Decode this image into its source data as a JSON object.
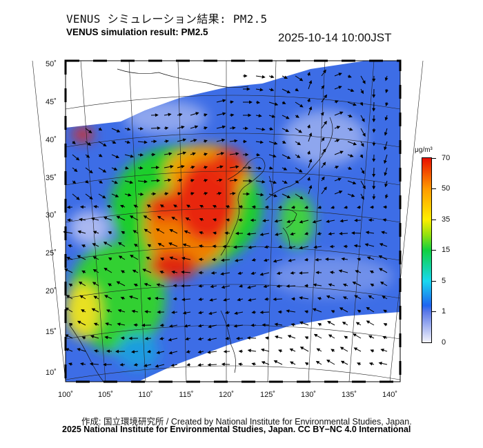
{
  "header": {
    "title_jp": "VENUS シミュレーション結果: PM2.5",
    "title_en": "VENUS simulation result: PM2.5",
    "timestamp": "2025-10-14 10:00JST"
  },
  "map": {
    "lat_labels": [
      "50˚",
      "45˚",
      "40˚",
      "35˚",
      "30˚",
      "25˚",
      "20˚",
      "15˚",
      "10˚"
    ],
    "lon_labels": [
      "100˚",
      "105˚",
      "110˚",
      "115˚",
      "120˚",
      "125˚",
      "130˚",
      "135˚",
      "140˚"
    ]
  },
  "colorbar": {
    "unit": "μg/m³",
    "labels": [
      "70",
      "50",
      "35",
      "15",
      "5",
      "1",
      "0"
    ],
    "colors": {
      "max": "#e81000",
      "high": "#ff9a00",
      "mid": "#ffee00",
      "green": "#10d040",
      "cyan": "#19d8f0",
      "blue": "#1e64f0",
      "low": "#f4f4fb"
    }
  },
  "footer": {
    "created_by": "作成: 国立環境研究所 / Created by National Institute for Environmental Studies, Japan.",
    "copyright": "2025 National Institute for Environmental Studies, Japan. CC BY−NC 4.0 International"
  }
}
